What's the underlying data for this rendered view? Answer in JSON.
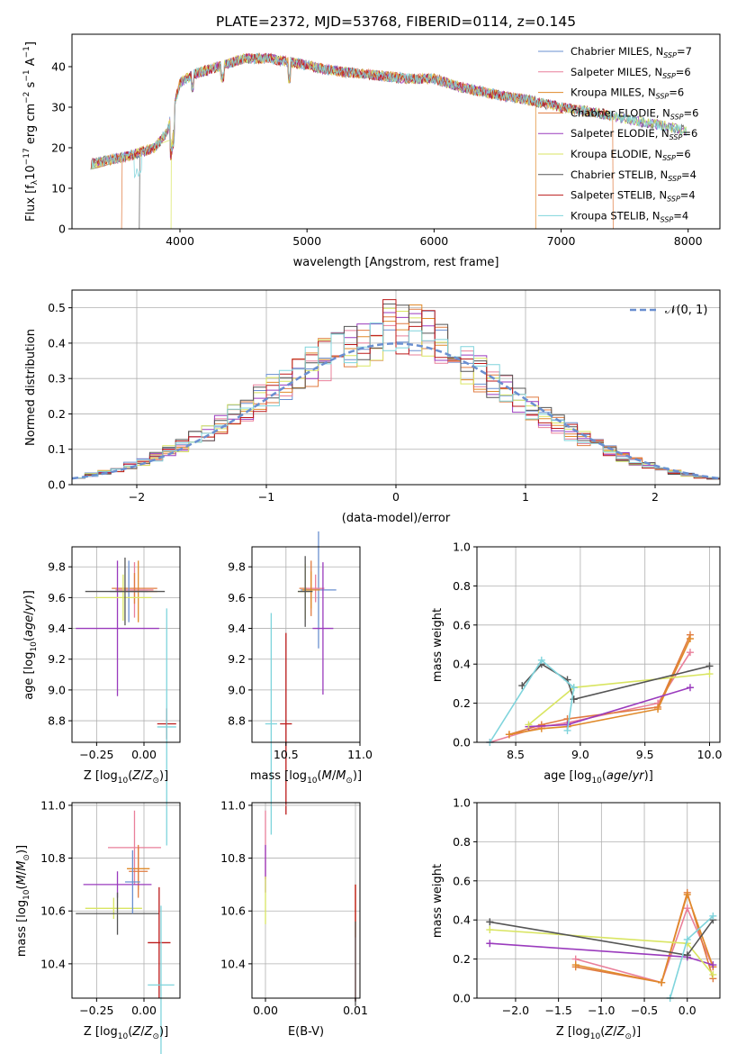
{
  "colors": [
    "#6a8fd0",
    "#e97f9a",
    "#e08a2a",
    "#e07b40",
    "#9a3bbd",
    "#d9e562",
    "#555555",
    "#bb1a1a",
    "#7fd4dc"
  ],
  "chart_data": [
    {
      "type": "line",
      "title": "PLATE=2372, MJD=53768, FIBERID=0114, z=0.145",
      "xlabel": "wavelength [Angstrom, rest frame]",
      "ylabel": "Flux [f_λ 10^-17 erg cm^-2 s^-1 A^-1]",
      "xlim": [
        3150,
        8250
      ],
      "ylim": [
        0,
        48
      ],
      "xticks": [
        4000,
        5000,
        6000,
        7000,
        8000
      ],
      "yticks": [
        0,
        10,
        20,
        30,
        40
      ],
      "grid": false,
      "legend_position": "top-right",
      "legend": [
        {
          "label": "Chabrier MILES, N",
          "sub": "SSP",
          "tail": "=7"
        },
        {
          "label": "Salpeter MILES, N",
          "sub": "SSP",
          "tail": "=6"
        },
        {
          "label": "Kroupa MILES, N",
          "sub": "SSP",
          "tail": "=6"
        },
        {
          "label": "Chabrier ELODIE, N",
          "sub": "SSP",
          "tail": "=6"
        },
        {
          "label": "Salpeter ELODIE, N",
          "sub": "SSP",
          "tail": "=6"
        },
        {
          "label": "Kroupa ELODIE, N",
          "sub": "SSP",
          "tail": "=6"
        },
        {
          "label": "Chabrier STELIB, N",
          "sub": "SSP",
          "tail": "=4"
        },
        {
          "label": "Salpeter STELIB, N",
          "sub": "SSP",
          "tail": "=4"
        },
        {
          "label": "Kroupa STELIB, N",
          "sub": "SSP",
          "tail": "=4"
        }
      ],
      "continuum": [
        [
          3300,
          16
        ],
        [
          3600,
          18
        ],
        [
          3700,
          19
        ],
        [
          3800,
          20
        ],
        [
          3900,
          24
        ],
        [
          4000,
          36
        ],
        [
          4100,
          38
        ],
        [
          4300,
          40
        ],
        [
          4500,
          42
        ],
        [
          4700,
          42
        ],
        [
          4900,
          41
        ],
        [
          5200,
          39
        ],
        [
          5500,
          38
        ],
        [
          5800,
          37
        ],
        [
          6000,
          37
        ],
        [
          6200,
          35
        ],
        [
          6500,
          33
        ],
        [
          6700,
          32
        ],
        [
          7000,
          30
        ],
        [
          7300,
          28.5
        ],
        [
          7600,
          26.5
        ],
        [
          7800,
          25.5
        ],
        [
          8000,
          24
        ]
      ],
      "dropouts": [
        [
          3540,
          3700,
          3930
        ],
        [
          6800,
          6810
        ],
        [
          7410,
          7420
        ]
      ]
    },
    {
      "type": "line",
      "xlabel": "(data-model)/error",
      "ylabel": "Normed distribution",
      "xlim": [
        -2.5,
        2.5
      ],
      "ylim": [
        0,
        0.55
      ],
      "xticks": [
        -2,
        -1,
        0,
        1,
        2
      ],
      "yticks": [
        0.0,
        0.1,
        0.2,
        0.3,
        0.4,
        0.5
      ],
      "grid": true,
      "legend_position": "top-right",
      "gaussian_label": "𝒩(0, 1)",
      "bin_width": 0.1
    },
    {
      "type": "scatter",
      "xlabel": "Z [log10(Z/Z☉)]",
      "ylabel": "age [log10(age/yr)]",
      "xlim": [
        -0.38,
        0.19
      ],
      "ylim": [
        8.66,
        9.93
      ],
      "xticks": [
        -0.25,
        0.0
      ],
      "yticks": [
        8.8,
        9.0,
        9.2,
        9.4,
        9.6,
        9.8
      ],
      "grid": true,
      "points": [
        {
          "x": -0.05,
          "y": 9.65,
          "xerr": 0.1,
          "yerr": 0.18
        },
        {
          "x": -0.03,
          "y": 9.64,
          "xerr": 0.1,
          "yerr": 0.2
        },
        {
          "x": -0.05,
          "y": 9.66,
          "xerr": 0.12,
          "yerr": 0.1
        },
        {
          "x": -0.08,
          "y": 9.64,
          "xerr": 0.1,
          "yerr": 0.2
        },
        {
          "x": -0.14,
          "y": 9.4,
          "xerr": 0.22,
          "yerr": 0.44
        },
        {
          "x": -0.11,
          "y": 9.6,
          "xerr": 0.15,
          "yerr": 0.15
        },
        {
          "x": -0.1,
          "y": 9.64,
          "xerr": 0.21,
          "yerr": 0.22
        },
        {
          "x": 0.12,
          "y": 8.78,
          "xerr": 0.05,
          "yerr": 0.1
        },
        {
          "x": 0.12,
          "y": 8.76,
          "xerr": 0.05,
          "yerr": 0.77
        }
      ]
    },
    {
      "type": "scatter",
      "xlabel": "mass [log10(M/M☉)]",
      "ylabel": "",
      "xlim": [
        10.27,
        11.0
      ],
      "ylim": [
        8.66,
        9.93
      ],
      "xticks": [
        10.5,
        11.0
      ],
      "yticks": [
        8.8,
        9.0,
        9.2,
        9.4,
        9.6,
        9.8
      ],
      "grid": true,
      "points": [
        {
          "x": 10.67,
          "y": 9.66,
          "xerr": 0.08,
          "yerr": 0.18
        },
        {
          "x": 10.72,
          "y": 9.65,
          "xerr": 0.12,
          "yerr": 0.38
        },
        {
          "x": 10.7,
          "y": 9.66,
          "xerr": 0.06,
          "yerr": 0.09
        },
        {
          "x": 10.67,
          "y": 9.65,
          "xerr": 0.06,
          "yerr": 0.12
        },
        {
          "x": 10.75,
          "y": 9.4,
          "xerr": 0.07,
          "yerr": 0.43
        },
        {
          "x": 10.63,
          "y": 9.64,
          "xerr": 0.05,
          "yerr": 0.18
        },
        {
          "x": 10.63,
          "y": 9.64,
          "xerr": 0.05,
          "yerr": 0.23
        },
        {
          "x": 10.5,
          "y": 8.78,
          "xerr": 0.04,
          "yerr": 0.59
        },
        {
          "x": 10.4,
          "y": 8.78,
          "xerr": 0.04,
          "yerr": 0.72
        }
      ]
    },
    {
      "type": "line",
      "xlabel": "age  [log10(age/yr)]",
      "ylabel": "mass weight",
      "xlim": [
        8.2,
        10.08
      ],
      "ylim": [
        0,
        1
      ],
      "xticks": [
        8.5,
        9.0,
        9.5,
        10.0
      ],
      "yticks": [
        0.0,
        0.2,
        0.4,
        0.6,
        0.8,
        1.0
      ],
      "grid": true,
      "series": [
        {
          "x": [
            8.3,
            8.7,
            8.9,
            9.6,
            9.85
          ],
          "y": [
            0.0,
            0.08,
            0.1,
            0.2,
            0.46
          ]
        },
        {
          "x": [
            8.45,
            8.7,
            8.9,
            9.6,
            9.85
          ],
          "y": [
            0.04,
            0.09,
            0.12,
            0.18,
            0.55
          ]
        },
        {
          "x": [
            8.45,
            8.7,
            8.9,
            9.6,
            9.85
          ],
          "y": [
            0.04,
            0.07,
            0.08,
            0.17,
            0.53
          ]
        },
        {
          "x": [
            8.6,
            8.9,
            9.85
          ],
          "y": [
            0.08,
            0.09,
            0.28
          ]
        },
        {
          "x": [
            8.6,
            8.95,
            10.0
          ],
          "y": [
            0.09,
            0.28,
            0.35
          ]
        },
        {
          "x": [
            8.55,
            8.7,
            8.9,
            8.95,
            10.0
          ],
          "y": [
            0.29,
            0.4,
            0.32,
            0.22,
            0.39
          ]
        },
        {
          "x": [
            8.3,
            8.7,
            8.95,
            8.9
          ],
          "y": [
            0.0,
            0.42,
            0.28,
            0.06
          ]
        }
      ]
    },
    {
      "type": "scatter",
      "xlabel": "Z [log10(Z/Z☉)]",
      "ylabel": "mass [log10(M/M☉)]",
      "xlim": [
        -0.38,
        0.19
      ],
      "ylim": [
        10.27,
        11.01
      ],
      "xticks": [
        -0.25,
        0.0
      ],
      "yticks": [
        10.4,
        10.6,
        10.8,
        11.0
      ],
      "grid": true,
      "points": [
        {
          "x": -0.05,
          "y": 10.84,
          "xerr": 0.14,
          "yerr": 0.14
        },
        {
          "x": -0.03,
          "y": 10.76,
          "xerr": 0.06,
          "yerr": 0.08
        },
        {
          "x": -0.03,
          "y": 10.75,
          "xerr": 0.05,
          "yerr": 0.1
        },
        {
          "x": -0.14,
          "y": 10.7,
          "xerr": 0.18,
          "yerr": 0.05
        },
        {
          "x": -0.16,
          "y": 10.61,
          "xerr": 0.15,
          "yerr": 0.04
        },
        {
          "x": -0.14,
          "y": 10.59,
          "xerr": 0.22,
          "yerr": 0.08
        },
        {
          "x": -0.06,
          "y": 10.71,
          "xerr": 0.04,
          "yerr": 0.12
        },
        {
          "x": 0.08,
          "y": 10.48,
          "xerr": 0.06,
          "yerr": 0.21
        },
        {
          "x": 0.09,
          "y": 10.32,
          "xerr": 0.07,
          "yerr": 0.3
        }
      ]
    },
    {
      "type": "scatter",
      "xlabel": "E(B-V)",
      "ylabel": "",
      "xlim": [
        -0.0015,
        0.0105
      ],
      "ylim": [
        10.27,
        11.01
      ],
      "xticks": [
        0.0,
        0.01
      ],
      "yticks": [
        10.4,
        10.6,
        10.8,
        11.0
      ],
      "grid": true,
      "points": [
        {
          "x": 0.0,
          "y": 10.85,
          "xerr": 0.0,
          "yerr": 0.13
        },
        {
          "x": 0.0,
          "y": 10.76,
          "xerr": 0.0,
          "yerr": 0.09
        },
        {
          "x": 0.0,
          "y": 10.64,
          "xerr": 0.0,
          "yerr": 0.09
        },
        {
          "x": 0.01,
          "y": 10.6,
          "xerr": 0.0,
          "yerr": 0.1
        },
        {
          "x": 0.01,
          "y": 10.48,
          "xerr": 0.0,
          "yerr": 0.22
        },
        {
          "x": 0.01,
          "y": 10.4,
          "xerr": 0.0,
          "yerr": 0.16
        }
      ]
    },
    {
      "type": "line",
      "xlabel": "Z [log10(Z/Z☉)]",
      "ylabel": "mass weight",
      "xlim": [
        -2.45,
        0.38
      ],
      "ylim": [
        0,
        1
      ],
      "xticks": [
        -2.0,
        -1.5,
        -1.0,
        -0.5,
        0.0
      ],
      "yticks": [
        0.0,
        0.2,
        0.4,
        0.6,
        0.8,
        1.0
      ],
      "grid": true,
      "series": [
        {
          "x": [
            -1.3,
            -0.3,
            0.0,
            0.3
          ],
          "y": [
            0.2,
            0.08,
            0.46,
            0.16
          ]
        },
        {
          "x": [
            -1.3,
            -0.3,
            0.0,
            0.3
          ],
          "y": [
            0.16,
            0.08,
            0.54,
            0.1
          ]
        },
        {
          "x": [
            -1.3,
            -0.3,
            0.0,
            0.3
          ],
          "y": [
            0.17,
            0.08,
            0.53,
            0.16
          ]
        },
        {
          "x": [
            -2.3,
            0.0,
            0.3
          ],
          "y": [
            0.28,
            0.21,
            0.17
          ]
        },
        {
          "x": [
            -2.3,
            0.0,
            0.3
          ],
          "y": [
            0.35,
            0.28,
            0.12
          ]
        },
        {
          "x": [
            -2.3,
            0.0,
            0.3
          ],
          "y": [
            0.39,
            0.22,
            0.4
          ]
        },
        {
          "x": [
            -0.2,
            0.0,
            0.3
          ],
          "y": [
            0.0,
            0.3,
            0.42
          ]
        }
      ]
    }
  ]
}
